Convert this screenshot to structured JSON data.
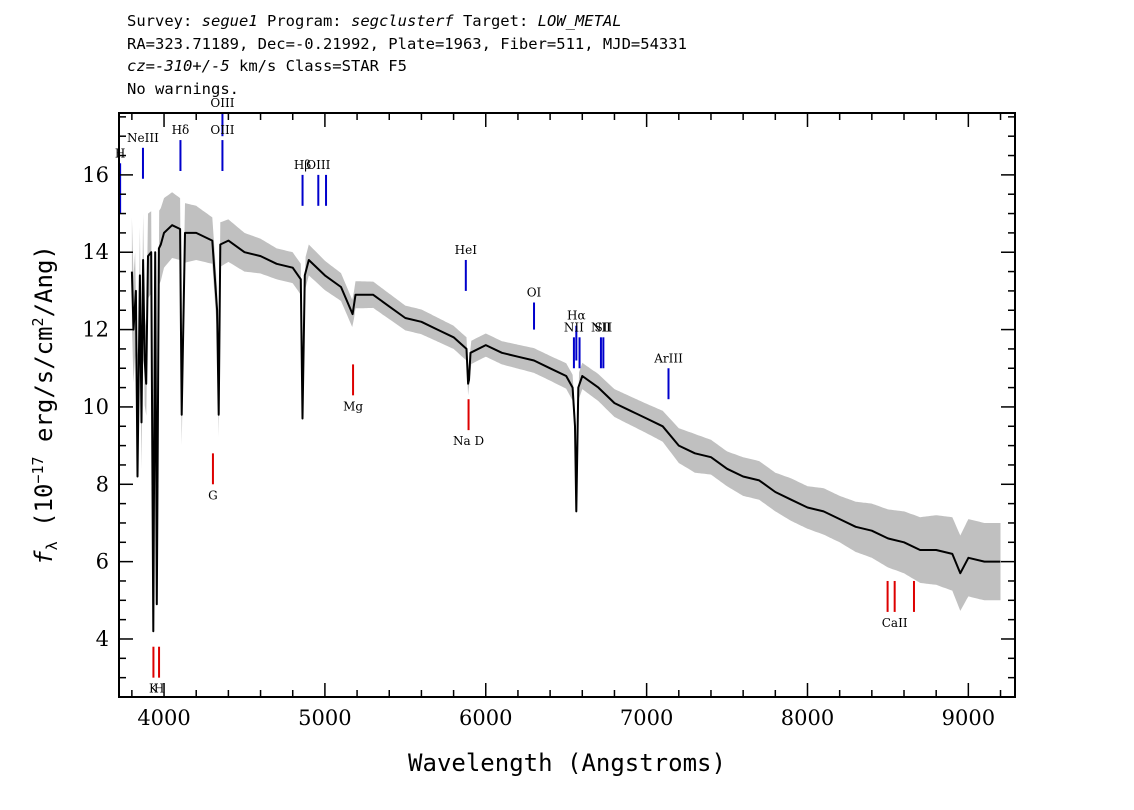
{
  "header": {
    "line1": {
      "survey_label": "Survey: ",
      "survey_value": "segue1",
      "program_label": " Program: ",
      "program_value": "segclusterf",
      "target_label": " Target: ",
      "target_value": "LOW_METAL"
    },
    "line2": "RA=323.71189, Dec=-0.21992, Plate=1963, Fiber=511, MJD=54331",
    "line3": {
      "cz_value": "cz=-310+/-5",
      "rest": " km/s Class=STAR F5"
    },
    "line4": "No warnings."
  },
  "colors": {
    "flux": "#000000",
    "error": "#c0c0c0",
    "emission_lines": "#0000cc",
    "absorption_lines": "#dd0000"
  },
  "chart_data": {
    "type": "line",
    "xlabel": "Wavelength (Angstroms)",
    "ylabel_parts": {
      "symbol": "f",
      "subscript": "λ",
      "open": " (10",
      "exp1": "−17",
      "units": " erg/s/cm",
      "exp2": "2",
      "close": "/Ang)"
    },
    "xlim": [
      3720,
      9290
    ],
    "ylim": [
      2.5,
      17.6
    ],
    "x_ticks": [
      4000,
      5000,
      6000,
      7000,
      8000,
      9000
    ],
    "y_ticks": [
      4,
      6,
      8,
      10,
      12,
      14,
      16
    ],
    "series": [
      {
        "name": "flux",
        "x": [
          3800,
          3810,
          3825,
          3835,
          3850,
          3860,
          3870,
          3880,
          3889,
          3900,
          3920,
          3933,
          3945,
          3955,
          3968,
          3980,
          4000,
          4050,
          4100,
          4110,
          4130,
          4200,
          4300,
          4330,
          4340,
          4350,
          4400,
          4500,
          4600,
          4700,
          4800,
          4850,
          4861,
          4875,
          4900,
          5000,
          5100,
          5172,
          5190,
          5300,
          5400,
          5500,
          5600,
          5700,
          5800,
          5880,
          5890,
          5896,
          5905,
          6000,
          6100,
          6200,
          6300,
          6400,
          6500,
          6540,
          6555,
          6563,
          6575,
          6600,
          6700,
          6800,
          6900,
          7000,
          7100,
          7200,
          7300,
          7400,
          7500,
          7600,
          7700,
          7800,
          7900,
          8000,
          8100,
          8200,
          8300,
          8400,
          8500,
          8600,
          8700,
          8800,
          8900,
          8950,
          9000,
          9100,
          9200
        ],
        "y": [
          13.5,
          12.0,
          13.0,
          8.2,
          13.4,
          9.6,
          13.8,
          11.2,
          10.6,
          13.9,
          14.0,
          4.2,
          14.0,
          4.9,
          14.1,
          14.2,
          14.5,
          14.7,
          14.6,
          9.8,
          14.5,
          14.5,
          14.3,
          12.5,
          9.8,
          14.2,
          14.3,
          14.0,
          13.9,
          13.7,
          13.6,
          13.3,
          9.7,
          13.4,
          13.8,
          13.4,
          13.1,
          12.4,
          12.9,
          12.9,
          12.6,
          12.3,
          12.2,
          12.0,
          11.8,
          11.5,
          10.6,
          10.7,
          11.4,
          11.6,
          11.4,
          11.3,
          11.2,
          11.0,
          10.8,
          10.5,
          9.5,
          7.3,
          10.5,
          10.8,
          10.5,
          10.1,
          9.9,
          9.7,
          9.5,
          9.0,
          8.8,
          8.7,
          8.4,
          8.2,
          8.1,
          7.8,
          7.6,
          7.4,
          7.3,
          7.1,
          6.9,
          6.8,
          6.6,
          6.5,
          6.3,
          6.3,
          6.2,
          5.7,
          6.1,
          6.0,
          6.0
        ]
      },
      {
        "name": "error",
        "x": [
          3800,
          3900,
          4000,
          4100,
          4200,
          4300,
          4400,
          4500,
          4600,
          4700,
          4800,
          4900,
          5000,
          5100,
          5200,
          5300,
          5400,
          5500,
          5600,
          5700,
          5800,
          5900,
          6000,
          6100,
          6200,
          6300,
          6400,
          6500,
          6600,
          6700,
          6800,
          6900,
          7000,
          7100,
          7200,
          7300,
          7400,
          7500,
          7600,
          7700,
          7800,
          7900,
          8000,
          8100,
          8200,
          8300,
          8400,
          8500,
          8600,
          8700,
          8800,
          8900,
          9000,
          9100,
          9200
        ],
        "y": [
          1.4,
          1.1,
          0.9,
          0.8,
          0.7,
          0.6,
          0.55,
          0.5,
          0.45,
          0.4,
          0.4,
          0.4,
          0.38,
          0.36,
          0.35,
          0.34,
          0.33,
          0.32,
          0.32,
          0.31,
          0.3,
          0.3,
          0.3,
          0.3,
          0.31,
          0.32,
          0.32,
          0.33,
          0.34,
          0.35,
          0.36,
          0.37,
          0.38,
          0.4,
          0.45,
          0.5,
          0.45,
          0.45,
          0.5,
          0.5,
          0.5,
          0.55,
          0.55,
          0.6,
          0.6,
          0.65,
          0.7,
          0.75,
          0.8,
          0.85,
          0.9,
          0.95,
          1.0,
          1.0,
          1.0
        ]
      }
    ],
    "emission_lines": [
      {
        "label": "H",
        "x": 3727,
        "y_base": 15.0,
        "y_top": 16.3
      },
      {
        "label": "NeIII",
        "x": 3869,
        "y_base": 15.9,
        "y_top": 16.7
      },
      {
        "label": "Hδ",
        "x": 4102,
        "y_base": 16.1,
        "y_top": 16.9
      },
      {
        "label": "OIII",
        "x": 4363,
        "y_base": 17.0,
        "y_top": 17.6
      },
      {
        "label": "OIII",
        "x": 4363,
        "y_base": 16.1,
        "y_top": 16.9
      },
      {
        "label": "Hβ",
        "x": 4861,
        "y_base": 15.2,
        "y_top": 16.0
      },
      {
        "label": "OIII",
        "x": 4959,
        "y_base": 15.2,
        "y_top": 16.0
      },
      {
        "label": "",
        "x": 5007,
        "y_base": 15.2,
        "y_top": 16.0
      },
      {
        "label": "HeI",
        "x": 5876,
        "y_base": 13.0,
        "y_top": 13.8
      },
      {
        "label": "OI",
        "x": 6300,
        "y_base": 12.0,
        "y_top": 12.7
      },
      {
        "label": "NII",
        "x": 6548,
        "y_base": 11.0,
        "y_top": 11.8
      },
      {
        "label": "Hα",
        "x": 6563,
        "y_base": 11.2,
        "y_top": 12.1
      },
      {
        "label": "",
        "x": 6583,
        "y_base": 11.0,
        "y_top": 11.8
      },
      {
        "label": "NII",
        "x": 6716,
        "y_base": 11.0,
        "y_top": 11.8
      },
      {
        "label": "SII",
        "x": 6731,
        "y_base": 11.0,
        "y_top": 11.8
      },
      {
        "label": "ArIII",
        "x": 7136,
        "y_base": 10.2,
        "y_top": 11.0
      }
    ],
    "absorption_lines": [
      {
        "label": "K",
        "x": 3934,
        "y_top": 3.8,
        "y_bot": 3.0
      },
      {
        "label": "H",
        "x": 3969,
        "y_top": 3.8,
        "y_bot": 3.0
      },
      {
        "label": "G",
        "x": 4304,
        "y_top": 8.8,
        "y_bot": 8.0
      },
      {
        "label": "Mg",
        "x": 5175,
        "y_top": 11.1,
        "y_bot": 10.3
      },
      {
        "label": "Na D",
        "x": 5893,
        "y_top": 10.2,
        "y_bot": 9.4
      },
      {
        "label": "",
        "x": 8498,
        "y_top": 5.5,
        "y_bot": 4.7
      },
      {
        "label": "CaII",
        "x": 8542,
        "y_top": 5.5,
        "y_bot": 4.7
      },
      {
        "label": "",
        "x": 8662,
        "y_top": 5.5,
        "y_bot": 4.7
      }
    ]
  }
}
